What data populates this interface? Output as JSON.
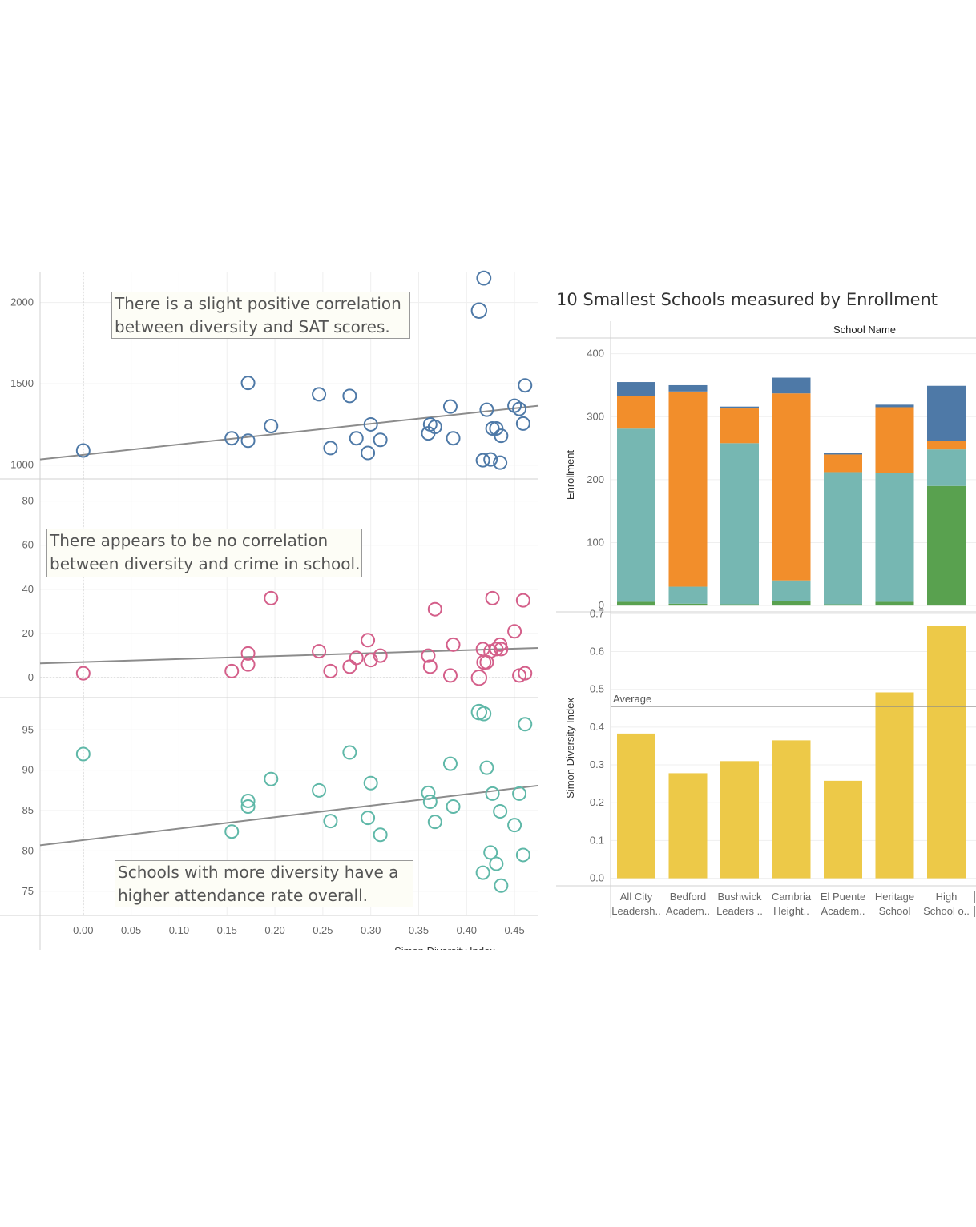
{
  "annotations": {
    "sat": [
      "There is a slight positive correlation",
      "between diversity and SAT scores."
    ],
    "crime": [
      "There appears to be no correlation",
      "between diversity and crime in school."
    ],
    "attendance": [
      "Schools with more diversity have a",
      "higher attendance rate overall."
    ]
  },
  "bar_panel": {
    "title": "10 Smallest Schools measured by Enrollment",
    "column_header": "School Name"
  },
  "colors": {
    "sat": "#4e79a7",
    "crime": "#d45f8a",
    "attendance": "#5fb8a8",
    "trend": "#8c8c8c",
    "bar_teal": "#76b7b2",
    "bar_orange": "#f28e2b",
    "bar_blue": "#4e79a7",
    "bar_green": "#59a14f",
    "diversity_bar": "#edc948"
  },
  "chart_data": [
    {
      "type": "scatter",
      "panel": "sat",
      "xlabel": "Simon Diversity Index",
      "ylabel": "",
      "xlim": [
        -0.045,
        0.475
      ],
      "ylim": [
        915,
        2185
      ],
      "yticks": [
        1000,
        1500,
        2000
      ],
      "points": [
        [
          0.0,
          1090,
          1
        ],
        [
          0.155,
          1165,
          1
        ],
        [
          0.172,
          1505,
          1
        ],
        [
          0.172,
          1150,
          1
        ],
        [
          0.196,
          1240,
          1
        ],
        [
          0.246,
          1435,
          1
        ],
        [
          0.258,
          1105,
          1
        ],
        [
          0.278,
          1425,
          1
        ],
        [
          0.285,
          1165,
          1
        ],
        [
          0.297,
          1075,
          1
        ],
        [
          0.3,
          1250,
          1
        ],
        [
          0.31,
          1155,
          1
        ],
        [
          0.36,
          1195,
          1
        ],
        [
          0.362,
          1250,
          1
        ],
        [
          0.367,
          1235,
          1
        ],
        [
          0.383,
          1360,
          1
        ],
        [
          0.386,
          1165,
          1
        ],
        [
          0.413,
          1950,
          1.15
        ],
        [
          0.418,
          2150,
          1.05
        ],
        [
          0.417,
          1030,
          1
        ],
        [
          0.421,
          1340,
          1
        ],
        [
          0.425,
          1035,
          1
        ],
        [
          0.427,
          1225,
          1
        ],
        [
          0.431,
          1225,
          1
        ],
        [
          0.435,
          1015,
          1
        ],
        [
          0.436,
          1180,
          1
        ],
        [
          0.45,
          1365,
          1
        ],
        [
          0.455,
          1345,
          1
        ],
        [
          0.459,
          1255,
          1
        ],
        [
          0.461,
          1490,
          1
        ]
      ],
      "trend": [
        [
          -0.045,
          1035
        ],
        [
          0.475,
          1365
        ]
      ]
    },
    {
      "type": "scatter",
      "panel": "crime",
      "xlabel": "Simon Diversity Index",
      "ylabel": "",
      "xlim": [
        -0.045,
        0.475
      ],
      "ylim": [
        -9,
        90
      ],
      "yticks": [
        0,
        20,
        40,
        60,
        80
      ],
      "points": [
        [
          0.0,
          2,
          1
        ],
        [
          0.155,
          3,
          1
        ],
        [
          0.172,
          11,
          1
        ],
        [
          0.172,
          6,
          1
        ],
        [
          0.196,
          36,
          1
        ],
        [
          0.246,
          12,
          1
        ],
        [
          0.258,
          3,
          1
        ],
        [
          0.278,
          5,
          1
        ],
        [
          0.285,
          9,
          1
        ],
        [
          0.297,
          17,
          1
        ],
        [
          0.3,
          8,
          1
        ],
        [
          0.31,
          10,
          1
        ],
        [
          0.36,
          10,
          1
        ],
        [
          0.362,
          5,
          1
        ],
        [
          0.367,
          31,
          1
        ],
        [
          0.383,
          1,
          1
        ],
        [
          0.386,
          15,
          1
        ],
        [
          0.413,
          0,
          1.15
        ],
        [
          0.418,
          7,
          1.05
        ],
        [
          0.417,
          13,
          1
        ],
        [
          0.421,
          7,
          1
        ],
        [
          0.425,
          12,
          1
        ],
        [
          0.427,
          36,
          1
        ],
        [
          0.431,
          13,
          1
        ],
        [
          0.435,
          15,
          1
        ],
        [
          0.436,
          13,
          1
        ],
        [
          0.45,
          21,
          1
        ],
        [
          0.455,
          1,
          1
        ],
        [
          0.459,
          35,
          1
        ],
        [
          0.461,
          2,
          1
        ]
      ],
      "trend": [
        [
          -0.045,
          6.5
        ],
        [
          0.475,
          13.5
        ]
      ]
    },
    {
      "type": "scatter",
      "panel": "attendance",
      "xlabel": "Simon Diversity Index",
      "ylabel": "",
      "xlim": [
        -0.045,
        0.475
      ],
      "ylim": [
        72,
        99
      ],
      "yticks": [
        75,
        80,
        85,
        90,
        95
      ],
      "xticks": [
        "0.00",
        "0.05",
        "0.10",
        "0.15",
        "0.20",
        "0.25",
        "0.30",
        "0.35",
        "0.40",
        "0.45"
      ],
      "points": [
        [
          0.0,
          92,
          1
        ],
        [
          0.155,
          82.4,
          1
        ],
        [
          0.172,
          86.2,
          1
        ],
        [
          0.172,
          85.5,
          1
        ],
        [
          0.196,
          88.9,
          1
        ],
        [
          0.246,
          87.5,
          1
        ],
        [
          0.258,
          83.7,
          1
        ],
        [
          0.278,
          92.2,
          1
        ],
        [
          0.297,
          84.1,
          1
        ],
        [
          0.3,
          88.4,
          1
        ],
        [
          0.31,
          82,
          1
        ],
        [
          0.36,
          87.2,
          1
        ],
        [
          0.362,
          86.1,
          1
        ],
        [
          0.367,
          83.6,
          1
        ],
        [
          0.383,
          90.8,
          1
        ],
        [
          0.386,
          85.5,
          1
        ],
        [
          0.413,
          97.2,
          1.15
        ],
        [
          0.418,
          97,
          1.05
        ],
        [
          0.417,
          77.3,
          1
        ],
        [
          0.421,
          90.3,
          1
        ],
        [
          0.425,
          79.8,
          1
        ],
        [
          0.427,
          87.1,
          1
        ],
        [
          0.431,
          78.4,
          1
        ],
        [
          0.435,
          84.9,
          1
        ],
        [
          0.436,
          75.7,
          1
        ],
        [
          0.45,
          83.2,
          1
        ],
        [
          0.455,
          87.1,
          1
        ],
        [
          0.459,
          79.5,
          1
        ],
        [
          0.461,
          95.7,
          1
        ]
      ],
      "trend": [
        [
          -0.045,
          80.7
        ],
        [
          0.475,
          88.1
        ]
      ]
    },
    {
      "type": "bar",
      "stacked": true,
      "title": "10 Smallest Schools measured by Enrollment",
      "ylabel": "Enrollment",
      "ylim": [
        -10,
        425
      ],
      "yticks": [
        0,
        100,
        200,
        300,
        400
      ],
      "categories": [
        "All City Leadersh..",
        "Bedford Academ..",
        "Bushwick Leaders ..",
        "Cambria Height..",
        "El Puente Academ..",
        "Heritage School",
        "High School o.."
      ],
      "series": [
        {
          "color_key": "bar_green",
          "values": [
            6,
            3,
            2,
            7,
            2,
            6,
            190
          ]
        },
        {
          "color_key": "bar_teal",
          "values": [
            275,
            27,
            256,
            33,
            210,
            205,
            58
          ]
        },
        {
          "color_key": "bar_orange",
          "values": [
            52,
            310,
            55,
            297,
            28,
            104,
            14
          ]
        },
        {
          "color_key": "bar_blue",
          "values": [
            22,
            10,
            3,
            25,
            2,
            4,
            87
          ]
        }
      ]
    },
    {
      "type": "bar",
      "ylabel": "Simon Diversity Index",
      "ylim": [
        -0.02,
        0.705
      ],
      "yticks": [
        "0.0",
        "0.1",
        "0.2",
        "0.3",
        "0.4",
        "0.5",
        "0.6",
        "0.7"
      ],
      "categories": [
        "All City Leadersh..",
        "Bedford Academ..",
        "Bushwick Leaders ..",
        "Cambria Height..",
        "El Puente Academ..",
        "Heritage School",
        "High School o.."
      ],
      "category_lines": [
        [
          "All City",
          "Leadersh.."
        ],
        [
          "Bedford",
          "Academ.."
        ],
        [
          "Bushwick",
          "Leaders .."
        ],
        [
          "Cambria",
          "Height.."
        ],
        [
          "El Puente",
          "Academ.."
        ],
        [
          "Heritage",
          "School"
        ],
        [
          "High",
          "School o.."
        ]
      ],
      "values": [
        0.383,
        0.278,
        0.31,
        0.365,
        0.258,
        0.492,
        0.668
      ],
      "reference_line": {
        "label": "Average",
        "value": 0.455
      }
    }
  ]
}
